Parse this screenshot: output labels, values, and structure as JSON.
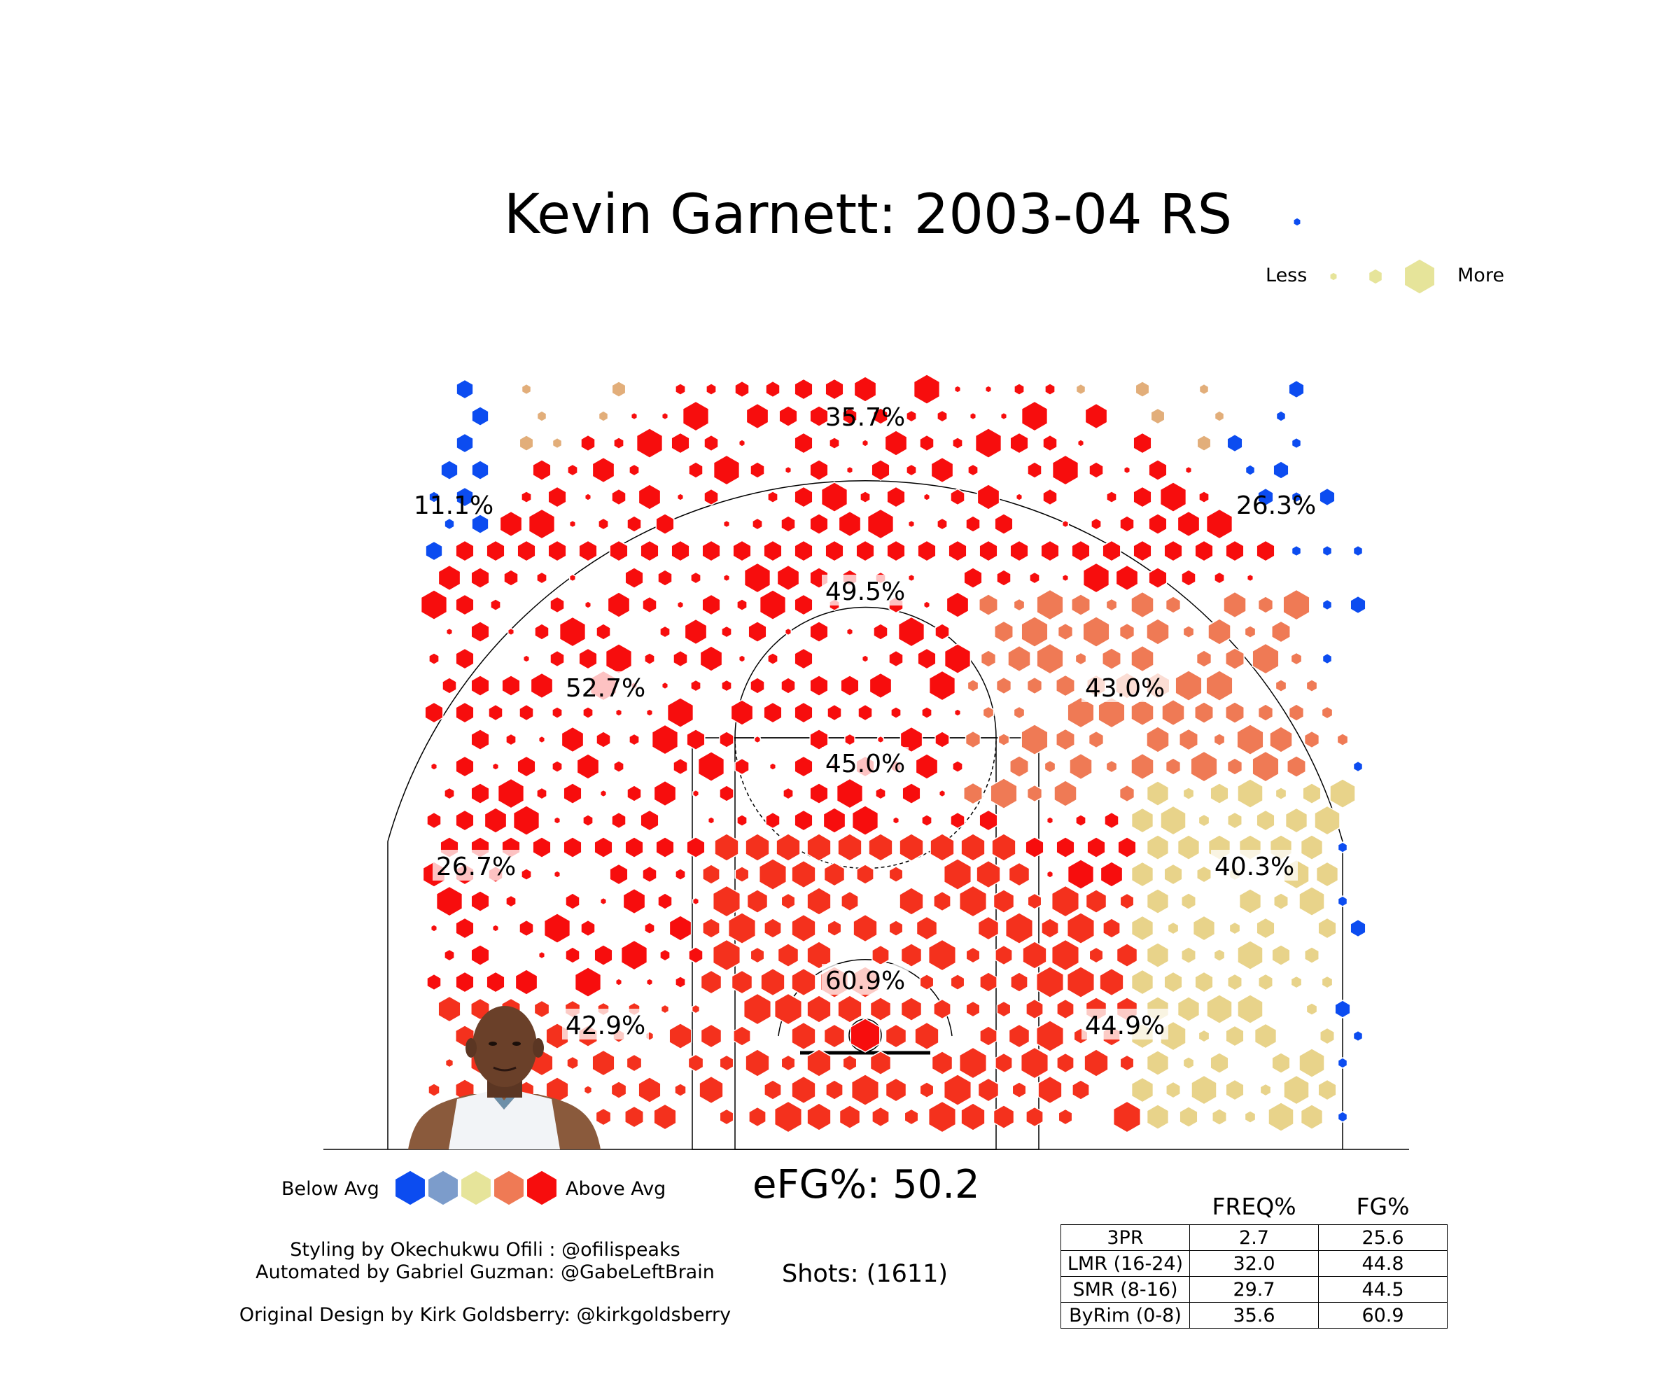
{
  "title": "Kevin Garnett: 2003-04 RS",
  "size_legend": {
    "less": "Less",
    "more": "More",
    "color": "#e6e49a"
  },
  "color_legend": {
    "below": "Below Avg",
    "above": "Above Avg",
    "colors": [
      "#0c4cf0",
      "#7c9ccb",
      "#e6e49a",
      "#ef7a55",
      "#f70d0d"
    ]
  },
  "efg": "eFG%: 50.2",
  "shots": "Shots: (1611)",
  "credits": {
    "styling": "Styling by Okechukwu Ofili : @ofilispeaks",
    "automated": "Automated by Gabriel Guzman: @GabeLeftBrain",
    "original": "Original Design by Kirk Goldsberry: @kirkgoldsberry"
  },
  "stats_table": {
    "columns": [
      "FREQ%",
      "FG%"
    ],
    "rows": [
      {
        "label": "3PR",
        "freq": "2.7",
        "fg": "25.6"
      },
      {
        "label": "LMR (16-24)",
        "freq": "32.0",
        "fg": "44.8"
      },
      {
        "label": "SMR (8-16)",
        "freq": "29.7",
        "fg": "44.5"
      },
      {
        "label": "ByRim (0-8)",
        "freq": "35.6",
        "fg": "60.9"
      }
    ]
  },
  "chart_data": {
    "type": "hexbin",
    "title": "Kevin Garnett: 2003-04 RS",
    "zones": [
      {
        "label": "35.7%"
      },
      {
        "label": "11.1%"
      },
      {
        "label": "26.3%"
      },
      {
        "label": "49.5%"
      },
      {
        "label": "52.7%"
      },
      {
        "label": "43.0%"
      },
      {
        "label": "45.0%"
      },
      {
        "label": "26.7%"
      },
      {
        "label": "40.3%"
      },
      {
        "label": "60.9%"
      },
      {
        "label": "42.9%"
      },
      {
        "label": "44.9%"
      }
    ],
    "legend": [
      "Less",
      "More"
    ]
  }
}
